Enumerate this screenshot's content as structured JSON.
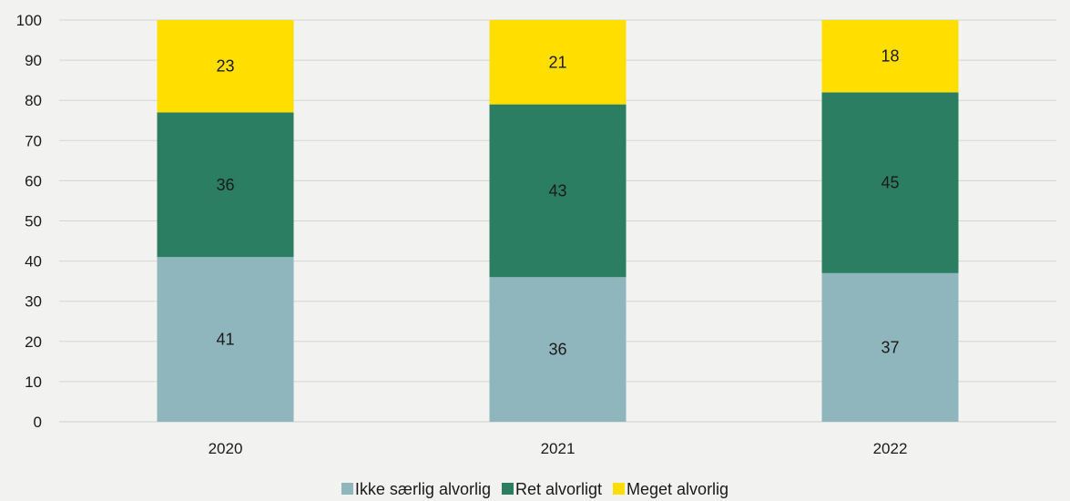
{
  "chart_data": {
    "type": "bar",
    "stacked": true,
    "categories": [
      "2020",
      "2021",
      "2022"
    ],
    "series": [
      {
        "name": "Ikke særlig alvorlig",
        "values": [
          41,
          36,
          37
        ],
        "color": "#8fb6bd"
      },
      {
        "name": "Ret alvorligt",
        "values": [
          36,
          43,
          45
        ],
        "color": "#2c7e62"
      },
      {
        "name": "Meget alvorlig",
        "values": [
          23,
          21,
          18
        ],
        "color": "#ffde00"
      }
    ],
    "ylim": [
      0,
      100
    ],
    "yticks": [
      0,
      10,
      20,
      30,
      40,
      50,
      60,
      70,
      80,
      90,
      100
    ],
    "grid": true,
    "legend_position": "bottom",
    "title": "",
    "xlabel": "",
    "ylabel": ""
  }
}
